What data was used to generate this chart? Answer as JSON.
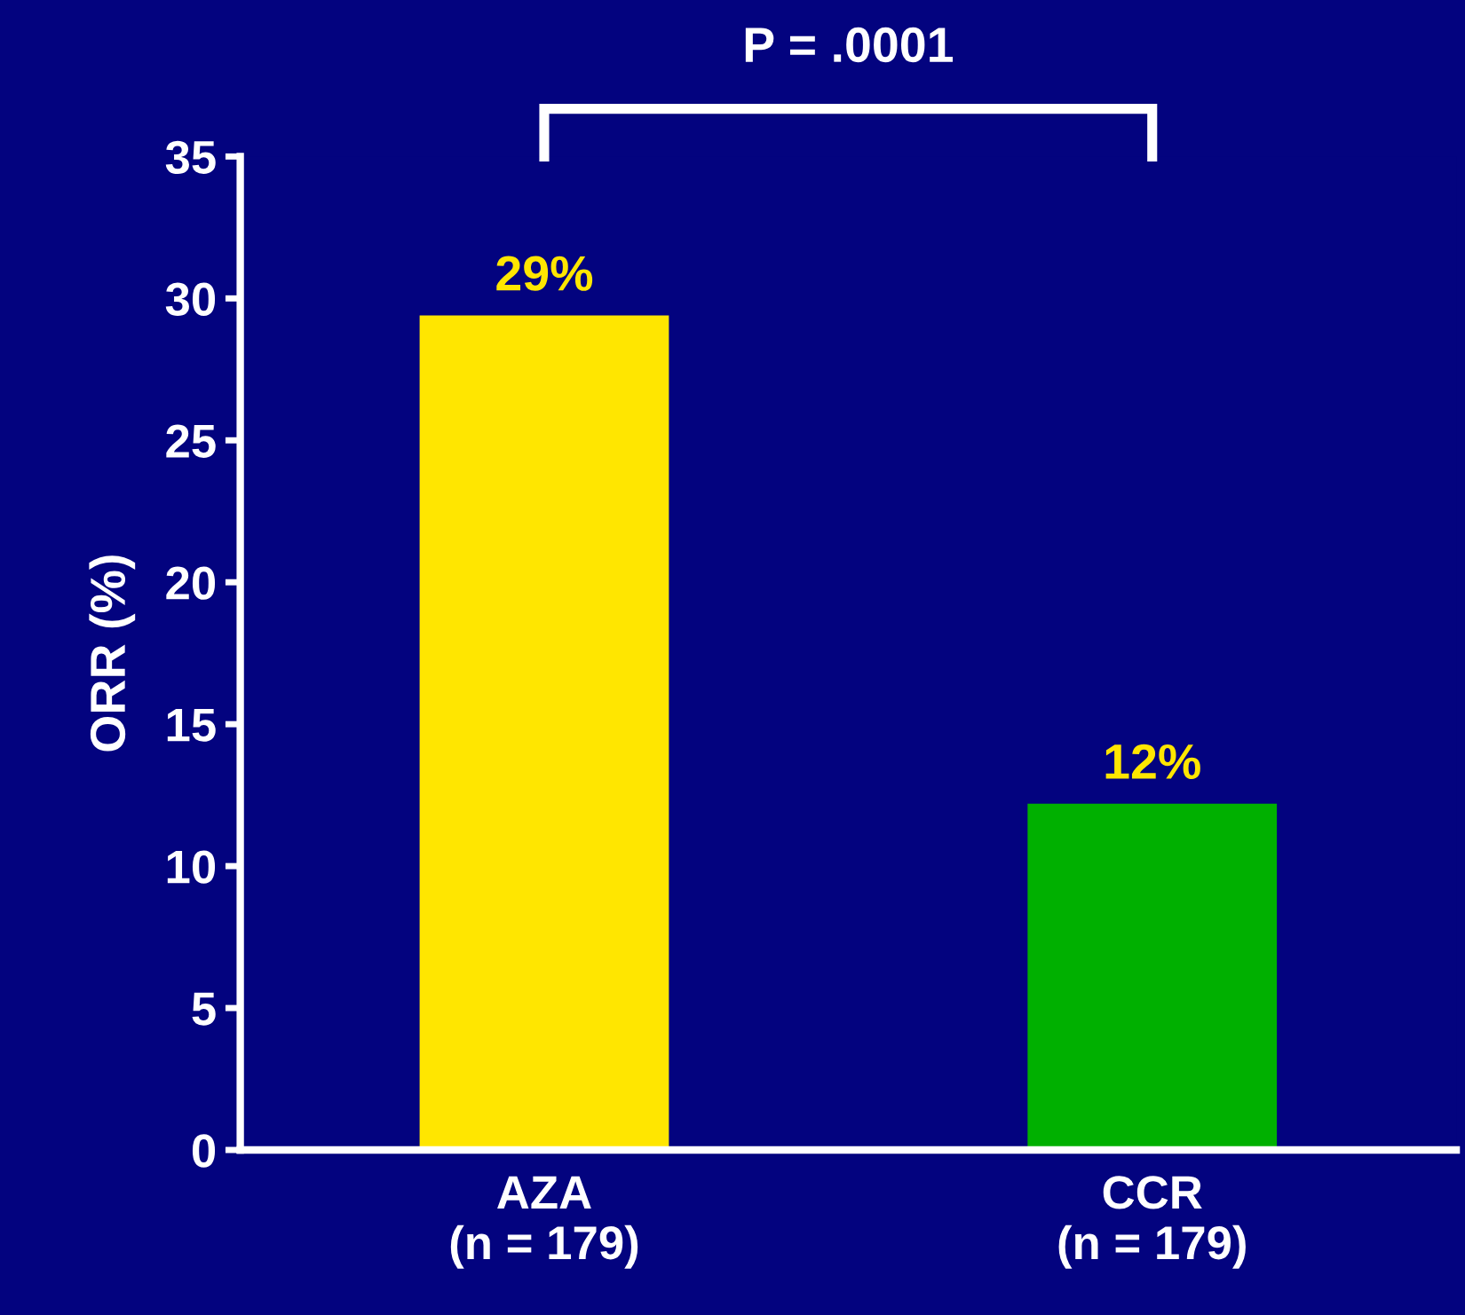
{
  "chart_data": {
    "type": "bar",
    "ylabel": "ORR (%)",
    "categories": [
      "AZA\n(n = 179)",
      "CCR\n(n = 179)"
    ],
    "values": [
      29.4,
      12.2
    ],
    "colors": [
      "#ffe600",
      "#00b000"
    ],
    "value_labels": [
      "29%",
      "12%"
    ],
    "ylim": [
      0,
      35
    ],
    "yticks": [
      0,
      5,
      10,
      15,
      20,
      25,
      30,
      35
    ],
    "grid": false,
    "annotations": [
      "P = .0001"
    ]
  }
}
